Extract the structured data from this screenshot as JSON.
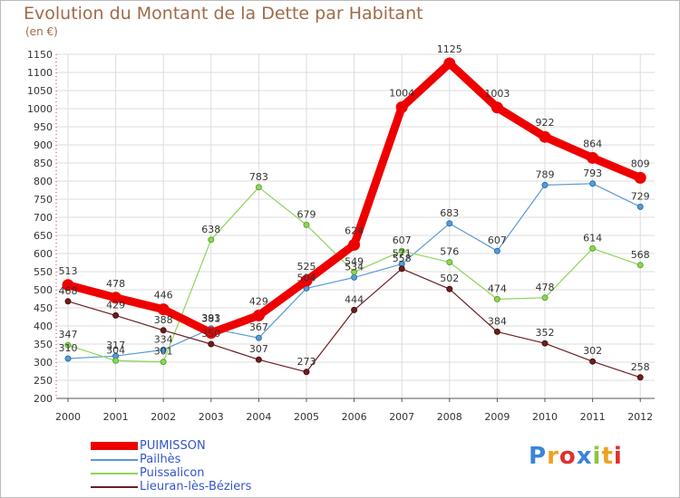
{
  "chart_data": {
    "type": "line",
    "title": "Evolution du Montant de la Dette par Habitant",
    "subtitle": "(en €)",
    "categories": [
      "2000",
      "2001",
      "2002",
      "2003",
      "2004",
      "2005",
      "2006",
      "2007",
      "2008",
      "2009",
      "2010",
      "2011",
      "2012"
    ],
    "ylim": [
      200,
      1150
    ],
    "yticks": [
      200,
      250,
      300,
      350,
      400,
      450,
      500,
      550,
      600,
      650,
      700,
      750,
      800,
      850,
      900,
      950,
      1000,
      1050,
      1100,
      1150
    ],
    "grid": true,
    "legend_position": "bottom-left",
    "series": [
      {
        "name": "PUIMISSON",
        "color": "#ee0000",
        "values": [
          513,
          478,
          446,
          381,
          429,
          525,
          624,
          1004,
          1125,
          1003,
          922,
          864,
          809
        ]
      },
      {
        "name": "Pailhès",
        "color": "#5a9bd4",
        "values": [
          310,
          317,
          334,
          393,
          367,
          504,
          534,
          571,
          683,
          607,
          789,
          793,
          729
        ]
      },
      {
        "name": "Puissalicon",
        "color": "#8fd45a",
        "values": [
          347,
          304,
          301,
          638,
          783,
          679,
          549,
          607,
          576,
          474,
          478,
          614,
          568
        ]
      },
      {
        "name": "Lieuran-lès-Béziers",
        "color": "#6b2020",
        "values": [
          468,
          429,
          388,
          350,
          307,
          273,
          444,
          558,
          502,
          384,
          352,
          302,
          258
        ]
      }
    ]
  },
  "logo": {
    "text": "Proxiti",
    "colors": [
      "#3a86d6",
      "#f0a020",
      "#e03030",
      "#3a86d6",
      "#8cc63f",
      "#f0a020",
      "#e03030"
    ]
  }
}
